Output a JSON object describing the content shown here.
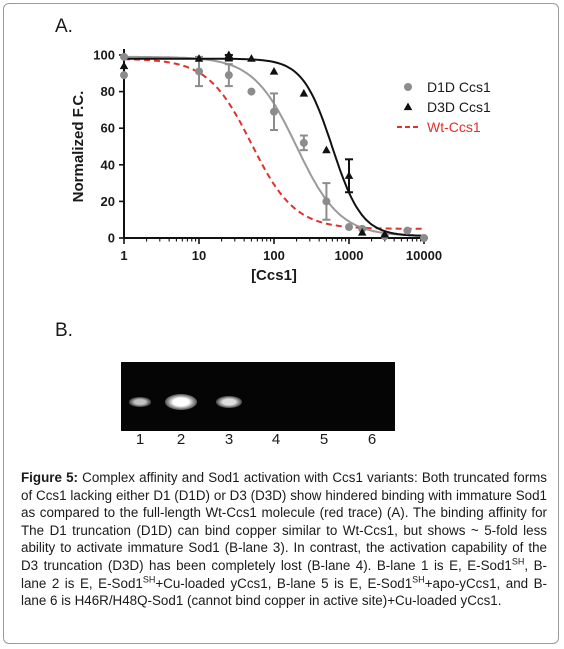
{
  "panel_a_label": "A.",
  "panel_b_label": "B.",
  "chart_data": {
    "type": "scatter",
    "title": "",
    "xlabel": "[Ccs1]",
    "ylabel": "Normalized F.C.",
    "xscale": "log",
    "xlim": [
      1,
      10000
    ],
    "ylim": [
      0,
      100
    ],
    "xticks": [
      1,
      10,
      100,
      1000,
      10000
    ],
    "xtick_labels": [
      "1",
      "10",
      "100",
      "1000",
      "10000"
    ],
    "yticks": [
      0,
      20,
      40,
      60,
      80,
      100
    ],
    "ytick_labels": [
      "0",
      "20",
      "40",
      "60",
      "80",
      "100"
    ],
    "legend_position": "right",
    "series": [
      {
        "name": "D1D Ccs1",
        "marker": "circle",
        "color": "#8c8c8c",
        "x": [
          1,
          1,
          10,
          25,
          50,
          100,
          250,
          500,
          1000,
          1500,
          3000,
          6000,
          10000
        ],
        "y": [
          99,
          89,
          91,
          89,
          80,
          69,
          52,
          20,
          6,
          5,
          1,
          4,
          0
        ],
        "err": [
          0,
          0,
          8,
          6,
          0,
          10,
          4,
          10,
          0,
          0,
          0,
          0,
          0
        ],
        "fit": {
          "top": 99,
          "bottom": 1,
          "ec50": 200,
          "hill": 1.5
        }
      },
      {
        "name": "D3D Ccs1",
        "marker": "triangle",
        "color": "#111111",
        "x": [
          1,
          10,
          25,
          50,
          100,
          250,
          500,
          1000,
          1500,
          3000
        ],
        "y": [
          94,
          98,
          100,
          98,
          91,
          79,
          48,
          34,
          3,
          2
        ],
        "err": [
          0,
          0,
          3,
          0,
          0,
          0,
          0,
          9,
          0,
          0
        ],
        "fit": {
          "top": 98,
          "bottom": 1,
          "ec50": 600,
          "hill": 2.2
        }
      },
      {
        "name": "Wt-Ccs1",
        "marker": "dashed-line",
        "color": "#e0312a",
        "fit": {
          "top": 98,
          "bottom": 5,
          "ec50": 50,
          "hill": 1.5
        }
      }
    ]
  },
  "gel": {
    "lane_numbers": [
      "1",
      "2",
      "3",
      "4",
      "5",
      "6"
    ],
    "band_intensity": [
      0.45,
      1.0,
      0.7,
      0,
      0,
      0
    ]
  },
  "caption": {
    "label": "Figure 5:",
    "p1": " Complex affinity and Sod1 activation with Ccs1 variants: Both truncated forms of Ccs1 lacking either D1 (D1D) or D3 (D3D) show hindered binding with immature Sod1 as compared to the full-length Wt-Ccs1 molecule (red trace) (A). The binding affinity for The D1 truncation (D1D) can bind copper similar to Wt-Ccs1, but shows ~ 5-fold less ability to activate immature Sod1 (B-lane 3). In contrast, the activation capability of the D3 truncation (D3D) has been completely lost (B-lane 4). B-lane 1 is E, E-Sod1",
    "sup1": "SH",
    "p2": ", B-lane 2 is E, E-Sod1",
    "sup2": "SH",
    "p3": "+Cu-loaded yCcs1, B-lane 5 is E, E-Sod1",
    "sup3": "SH",
    "p4": "+apo-yCcs1, and B-lane 6 is H46R/H48Q-Sod1 (cannot bind copper in active site)+Cu-loaded yCcs1."
  }
}
